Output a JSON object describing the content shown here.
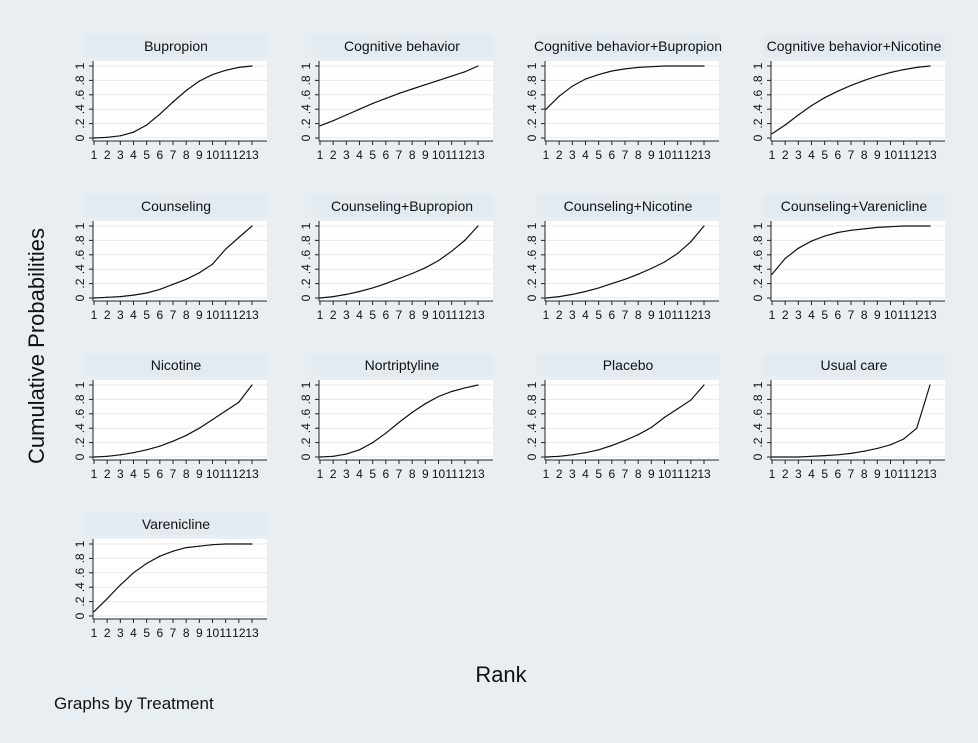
{
  "ylabel": "Cumulative Probabilities",
  "xlabel": "Rank",
  "note": "Graphs by Treatment",
  "chart_data": {
    "type": "line",
    "x": [
      1,
      2,
      3,
      4,
      5,
      6,
      7,
      8,
      9,
      10,
      11,
      12,
      13
    ],
    "x_tick_labels": [
      "1",
      "2",
      "3",
      "4",
      "5",
      "6",
      "7",
      "8",
      "9",
      "10",
      "11",
      "12",
      "13"
    ],
    "y_tick_labels": [
      "0",
      ".2",
      ".4",
      ".6",
      ".8",
      "1"
    ],
    "ylim": [
      0,
      1
    ],
    "xlim": [
      1,
      13
    ],
    "grid": true,
    "panels": [
      {
        "title": "Bupropion",
        "values": [
          0.0,
          0.01,
          0.03,
          0.08,
          0.18,
          0.33,
          0.5,
          0.66,
          0.79,
          0.88,
          0.94,
          0.98,
          1.0
        ]
      },
      {
        "title": "Cognitive behavior",
        "values": [
          0.17,
          0.24,
          0.32,
          0.4,
          0.48,
          0.55,
          0.62,
          0.68,
          0.74,
          0.8,
          0.86,
          0.92,
          1.0
        ]
      },
      {
        "title": "Cognitive behavior+Bupropion",
        "values": [
          0.4,
          0.58,
          0.72,
          0.82,
          0.88,
          0.93,
          0.96,
          0.98,
          0.99,
          1.0,
          1.0,
          1.0,
          1.0
        ]
      },
      {
        "title": "Cognitive behavior+Nicotine",
        "values": [
          0.06,
          0.18,
          0.32,
          0.45,
          0.56,
          0.65,
          0.73,
          0.8,
          0.86,
          0.91,
          0.95,
          0.98,
          1.0
        ]
      },
      {
        "title": "Counseling",
        "values": [
          0.0,
          0.01,
          0.02,
          0.04,
          0.07,
          0.12,
          0.19,
          0.26,
          0.35,
          0.47,
          0.68,
          0.84,
          1.0
        ]
      },
      {
        "title": "Counseling+Bupropion",
        "values": [
          0.0,
          0.02,
          0.05,
          0.09,
          0.14,
          0.2,
          0.27,
          0.34,
          0.42,
          0.52,
          0.65,
          0.8,
          1.0
        ]
      },
      {
        "title": "Counseling+Nicotine",
        "values": [
          0.0,
          0.02,
          0.05,
          0.09,
          0.14,
          0.2,
          0.26,
          0.33,
          0.41,
          0.5,
          0.62,
          0.78,
          1.0
        ]
      },
      {
        "title": "Counseling+Varenicline",
        "values": [
          0.33,
          0.55,
          0.69,
          0.79,
          0.86,
          0.91,
          0.94,
          0.96,
          0.98,
          0.99,
          1.0,
          1.0,
          1.0
        ]
      },
      {
        "title": "Nicotine",
        "values": [
          0.0,
          0.01,
          0.03,
          0.06,
          0.1,
          0.15,
          0.22,
          0.3,
          0.4,
          0.52,
          0.64,
          0.76,
          1.0
        ]
      },
      {
        "title": "Nortriptyline",
        "values": [
          0.0,
          0.01,
          0.04,
          0.1,
          0.2,
          0.33,
          0.48,
          0.62,
          0.74,
          0.84,
          0.91,
          0.96,
          1.0
        ]
      },
      {
        "title": "Placebo",
        "values": [
          0.0,
          0.01,
          0.03,
          0.06,
          0.1,
          0.16,
          0.23,
          0.31,
          0.41,
          0.55,
          0.67,
          0.79,
          1.0
        ]
      },
      {
        "title": "Usual care",
        "values": [
          0.0,
          0.0,
          0.0,
          0.01,
          0.02,
          0.03,
          0.05,
          0.08,
          0.12,
          0.17,
          0.25,
          0.4,
          1.0
        ]
      },
      {
        "title": "Varenicline",
        "values": [
          0.06,
          0.24,
          0.43,
          0.6,
          0.73,
          0.83,
          0.9,
          0.95,
          0.97,
          0.99,
          1.0,
          1.0,
          1.0
        ]
      }
    ]
  }
}
